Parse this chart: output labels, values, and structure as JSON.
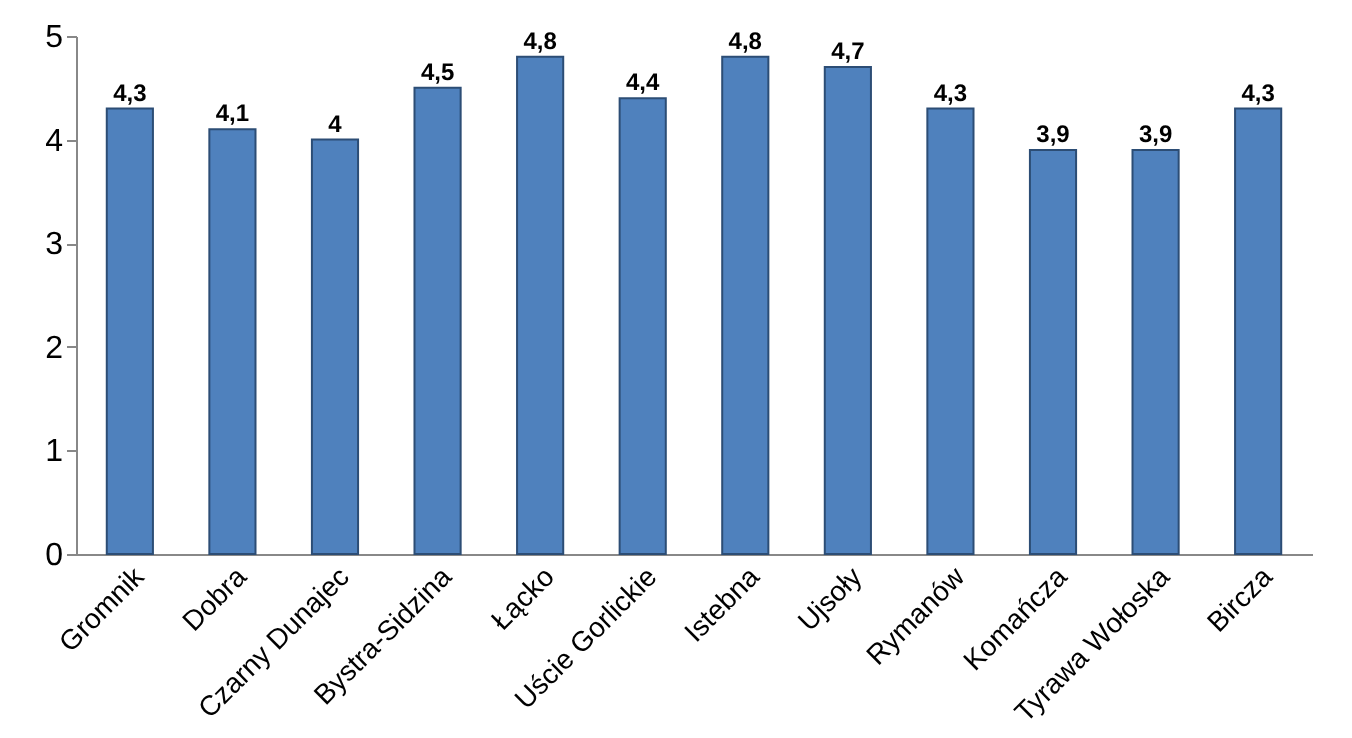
{
  "chart_data": {
    "type": "bar",
    "categories": [
      "Gromnik",
      "Dobra",
      "Czarny Dunajec",
      "Bystra-Sidzina",
      "Łącko",
      "Uście Gorlickie",
      "Istebna",
      "Ujsoły",
      "Rymanów",
      "Komańcza",
      "Tyrawa Wołoska",
      "Bircza"
    ],
    "values": [
      4.3,
      4.1,
      4.0,
      4.5,
      4.8,
      4.4,
      4.8,
      4.7,
      4.3,
      3.9,
      3.9,
      4.3
    ],
    "value_labels": [
      "4,3",
      "4,1",
      "4",
      "4,5",
      "4,8",
      "4,4",
      "4,8",
      "4,7",
      "4,3",
      "3,9",
      "3,9",
      "4,3"
    ],
    "color": "#4f81bd",
    "ylim": [
      0,
      5
    ],
    "yticks": [
      0,
      1,
      2,
      3,
      4,
      5
    ],
    "grid": false
  }
}
